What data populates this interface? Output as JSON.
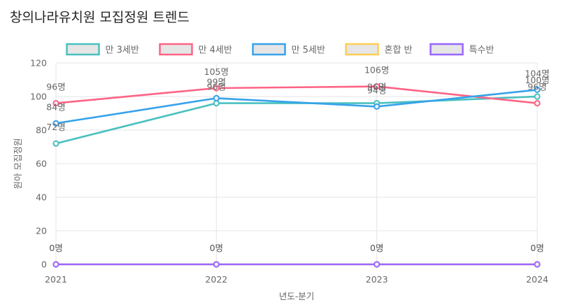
{
  "title": "창의나라유치원 모집정원 트렌드",
  "chart_data": {
    "type": "line",
    "title": "창의나라유치원 모집정원 트렌드",
    "xlabel": "년도-분기",
    "ylabel": "원아 모집정원",
    "x": [
      "2021",
      "2022",
      "2023",
      "2024"
    ],
    "ylim": [
      0,
      120
    ],
    "yticks": [
      0,
      20,
      40,
      60,
      80,
      100,
      120
    ],
    "grid": true,
    "legend_position": "top",
    "data_label_suffix": "명",
    "series": [
      {
        "name": "만 3세반",
        "values": [
          72,
          96,
          96,
          100
        ],
        "color": "#4bc0c0",
        "fill": "#e6e6e6"
      },
      {
        "name": "만 4세반",
        "values": [
          96,
          105,
          106,
          96
        ],
        "color": "#ff6384",
        "fill": "#e6e6e6"
      },
      {
        "name": "만 5세반",
        "values": [
          84,
          99,
          94,
          104
        ],
        "color": "#36a2eb",
        "fill": "#e6e6e6"
      },
      {
        "name": "혼합 반",
        "values": [
          0,
          0,
          0,
          0
        ],
        "color": "#ffcd56",
        "fill": "#e6e6e6"
      },
      {
        "name": "특수반",
        "values": [
          0,
          0,
          0,
          0
        ],
        "color": "#9966ff",
        "fill": "#e6e6e6"
      }
    ]
  }
}
